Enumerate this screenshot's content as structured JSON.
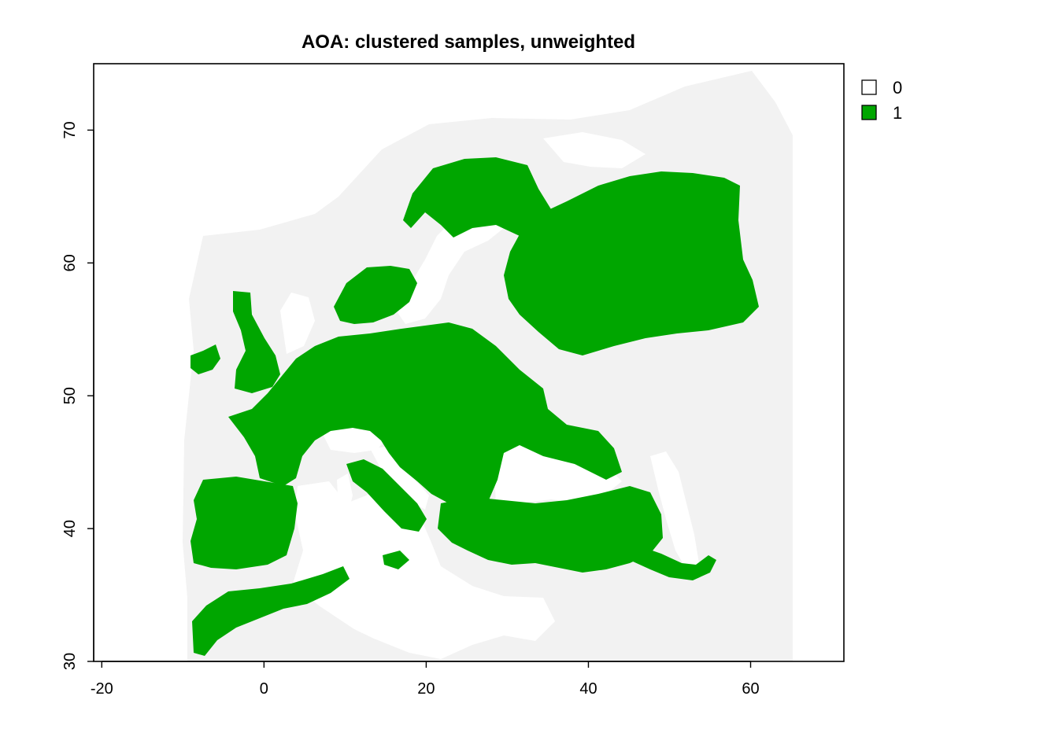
{
  "chart_data": {
    "type": "map",
    "title": "AOA: clustered samples, unweighted",
    "xlabel": "",
    "ylabel": "",
    "xlim": [
      -21,
      71.5
    ],
    "ylim": [
      30,
      75
    ],
    "x_ticks": [
      -20,
      0,
      20,
      40,
      60
    ],
    "y_ticks": [
      30,
      40,
      50,
      60,
      70
    ],
    "x_tick_labels": [
      "-20",
      "0",
      "20",
      "40",
      "60"
    ],
    "y_tick_labels": [
      "30",
      "40",
      "50",
      "60",
      "70"
    ],
    "legend": {
      "position": "top-right",
      "entries": [
        {
          "label": "0",
          "color": "#ffffff"
        },
        {
          "label": "1",
          "color": "#00a600"
        }
      ]
    },
    "colors": {
      "aoa": "#00a600",
      "outside_aoa": "#f2f2f2",
      "na_background": "#ffffff"
    }
  }
}
